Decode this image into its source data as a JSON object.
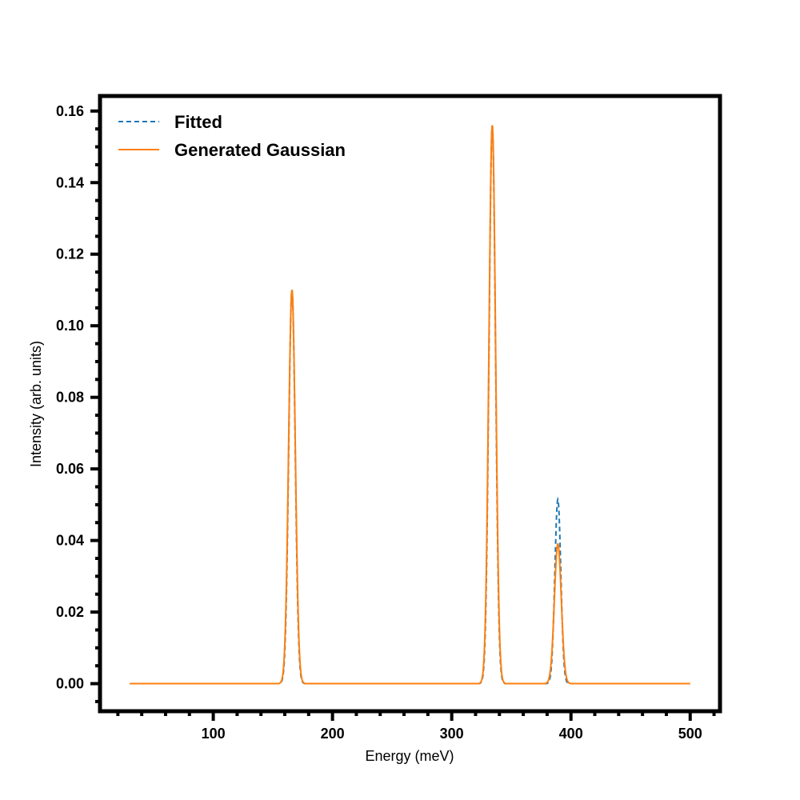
{
  "chart_data": {
    "type": "line",
    "title": "",
    "xlabel": "Energy (meV)",
    "ylabel": "Intensity (arb. units)",
    "xlim": [
      5,
      525
    ],
    "ylim": [
      -0.0077,
      0.1642
    ],
    "x_ticks": [
      100,
      200,
      300,
      400,
      500
    ],
    "x_tick_labels": [
      "100",
      "200",
      "300",
      "400",
      "500"
    ],
    "y_ticks": [
      0.0,
      0.02,
      0.04,
      0.06,
      0.08,
      0.1,
      0.12,
      0.14,
      0.16
    ],
    "y_tick_labels": [
      "0.00",
      "0.02",
      "0.04",
      "0.06",
      "0.08",
      "0.10",
      "0.12",
      "0.14",
      "0.16"
    ],
    "x_minor_step": 20,
    "y_minor_step": 0.005,
    "grid": false,
    "legend_position": "top-left",
    "x_range": [
      30,
      500
    ],
    "series": [
      {
        "name": "Fitted",
        "color": "#1f77b4",
        "style": "dashed",
        "peaks": [
          {
            "center": 166,
            "amplitude": 0.11,
            "sigma": 2.7
          },
          {
            "center": 334,
            "amplitude": 0.156,
            "sigma": 2.7
          },
          {
            "center": 389,
            "amplitude": 0.0515,
            "sigma": 2.5
          }
        ]
      },
      {
        "name": "Generated Gaussian",
        "color": "#ff7f0e",
        "style": "solid",
        "peaks": [
          {
            "center": 166,
            "amplitude": 0.11,
            "sigma": 2.8
          },
          {
            "center": 334,
            "amplitude": 0.156,
            "sigma": 2.8
          },
          {
            "center": 389,
            "amplitude": 0.039,
            "sigma": 2.9
          }
        ]
      }
    ]
  }
}
